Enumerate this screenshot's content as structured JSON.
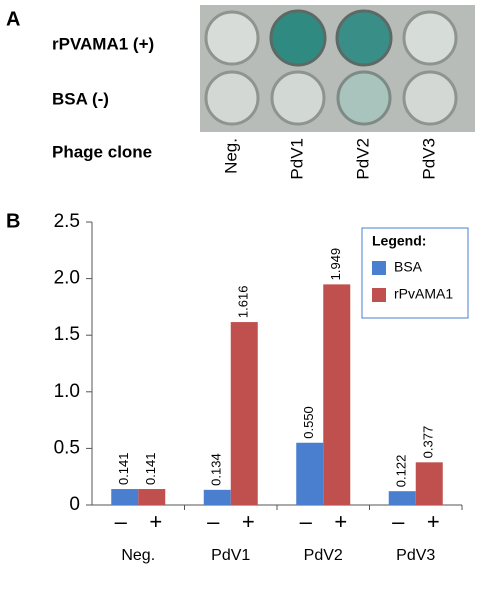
{
  "panel_a": {
    "letter": "A",
    "rows": [
      "rPVAMA1 (+)",
      "BSA (-)"
    ],
    "row_caption": "Phage clone",
    "columns": [
      "Neg.",
      "PdV1",
      "PdV2",
      "PdV3"
    ]
  },
  "chart_data": {
    "type": "bar",
    "panel_letter": "B",
    "categories": [
      "Neg.",
      "PdV1",
      "PdV2",
      "PdV3"
    ],
    "bar_labels": [
      "–",
      "+"
    ],
    "series": [
      {
        "name": "BSA",
        "color": "#4a7fd0",
        "values": [
          0.141,
          0.134,
          0.55,
          0.122
        ],
        "value_labels": [
          "0.141",
          "0.134",
          "0.550",
          "0.122"
        ]
      },
      {
        "name": "rPvAMA1",
        "color": "#c0504d",
        "values": [
          0.141,
          1.616,
          1.949,
          0.377
        ],
        "value_labels": [
          "0.141",
          "1.616",
          "1.949",
          "0.377"
        ]
      }
    ],
    "ylim": [
      0,
      2.5
    ],
    "yticks": [
      0,
      0.5,
      {
        "value": 1,
        "label": "1.0"
      },
      {
        "value": 1.5,
        "label": "1.5"
      },
      {
        "value": 2,
        "label": "2.0"
      },
      {
        "value": 2.5,
        "label": "2.5"
      }
    ],
    "legend_title": "Legend:",
    "legend": "top-right"
  }
}
